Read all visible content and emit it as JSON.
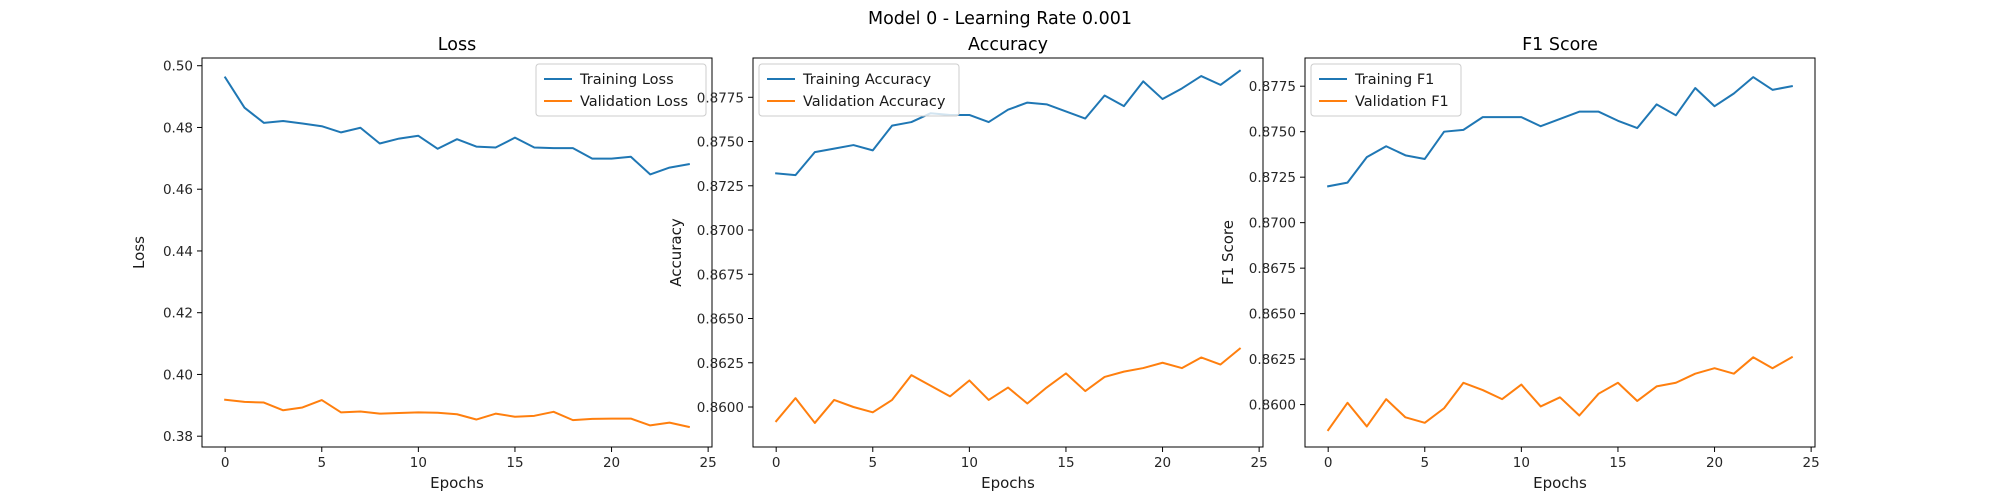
{
  "figure": {
    "title": "Model 0 - Learning Rate 0.001"
  },
  "chart_data": [
    {
      "type": "line",
      "title": "Loss",
      "xlabel": "Epochs",
      "ylabel": "Loss",
      "xlim": [
        -1.2,
        25.2
      ],
      "ylim": [
        0.3765,
        0.5025
      ],
      "xticks": [
        0,
        5,
        10,
        15,
        20,
        25
      ],
      "yticks": [
        0.38,
        0.4,
        0.42,
        0.44,
        0.46,
        0.48,
        0.5
      ],
      "ytick_labels": [
        "0.38",
        "0.40",
        "0.42",
        "0.44",
        "0.46",
        "0.48",
        "0.50"
      ],
      "legend_position": "top-right",
      "x": [
        0,
        1,
        2,
        3,
        4,
        5,
        6,
        7,
        8,
        9,
        10,
        11,
        12,
        13,
        14,
        15,
        16,
        17,
        18,
        19,
        20,
        21,
        22,
        23,
        24
      ],
      "series": [
        {
          "name": "Training Loss",
          "color": "#1f77b4",
          "values": [
            0.4962,
            0.4864,
            0.4815,
            0.4821,
            0.4813,
            0.4804,
            0.4784,
            0.4799,
            0.4748,
            0.4764,
            0.4773,
            0.4731,
            0.4762,
            0.4738,
            0.4735,
            0.4767,
            0.4735,
            0.4733,
            0.4733,
            0.4699,
            0.4699,
            0.4705,
            0.4648,
            0.467,
            0.4681
          ]
        },
        {
          "name": "Validation Loss",
          "color": "#ff7f0e",
          "values": [
            0.3918,
            0.3911,
            0.3909,
            0.3884,
            0.3893,
            0.3917,
            0.3877,
            0.388,
            0.3873,
            0.3875,
            0.3877,
            0.3876,
            0.3871,
            0.3854,
            0.3873,
            0.3863,
            0.3866,
            0.3879,
            0.3852,
            0.3856,
            0.3857,
            0.3857,
            0.3835,
            0.3844,
            0.383
          ]
        }
      ]
    },
    {
      "type": "line",
      "title": "Accuracy",
      "xlabel": "Epochs",
      "ylabel": "Accuracy",
      "xlim": [
        -1.2,
        25.2
      ],
      "ylim": [
        0.85774,
        0.87972
      ],
      "xticks": [
        0,
        5,
        10,
        15,
        20,
        25
      ],
      "yticks": [
        0.86,
        0.8625,
        0.865,
        0.8675,
        0.87,
        0.8725,
        0.875,
        0.8775
      ],
      "ytick_labels": [
        "0.8600",
        "0.8625",
        "0.8650",
        "0.8675",
        "0.8700",
        "0.8725",
        "0.8750",
        "0.8775"
      ],
      "legend_position": "top-left",
      "x": [
        0,
        1,
        2,
        3,
        4,
        5,
        6,
        7,
        8,
        9,
        10,
        11,
        12,
        13,
        14,
        15,
        16,
        17,
        18,
        19,
        20,
        21,
        22,
        23,
        24
      ],
      "series": [
        {
          "name": "Training Accuracy",
          "color": "#1f77b4",
          "values": [
            0.8732,
            0.8731,
            0.8744,
            0.8746,
            0.8748,
            0.8745,
            0.8759,
            0.8761,
            0.8766,
            0.8765,
            0.8765,
            0.8761,
            0.8768,
            0.8772,
            0.8771,
            0.8767,
            0.8763,
            0.8776,
            0.877,
            0.8784,
            0.8774,
            0.878,
            0.8787,
            0.8782,
            0.879
          ]
        },
        {
          "name": "Validation Accuracy",
          "color": "#ff7f0e",
          "values": [
            0.8592,
            0.8605,
            0.8591,
            0.8604,
            0.86,
            0.8597,
            0.8604,
            0.8618,
            0.8612,
            0.8606,
            0.8615,
            0.8604,
            0.8611,
            0.8602,
            0.8611,
            0.8619,
            0.8609,
            0.8617,
            0.862,
            0.8622,
            0.8625,
            0.8622,
            0.8628,
            0.8624,
            0.8633
          ]
        }
      ]
    },
    {
      "type": "line",
      "title": "F1 Score",
      "xlabel": "Epochs",
      "ylabel": "F1 Score",
      "xlim": [
        -1.2,
        25.2
      ],
      "ylim": [
        0.85767,
        0.87905
      ],
      "xticks": [
        0,
        5,
        10,
        15,
        20,
        25
      ],
      "yticks": [
        0.86,
        0.8625,
        0.865,
        0.8675,
        0.87,
        0.8725,
        0.875,
        0.8775
      ],
      "ytick_labels": [
        "0.8600",
        "0.8625",
        "0.8650",
        "0.8675",
        "0.8700",
        "0.8725",
        "0.8750",
        "0.8775"
      ],
      "legend_position": "top-left",
      "x": [
        0,
        1,
        2,
        3,
        4,
        5,
        6,
        7,
        8,
        9,
        10,
        11,
        12,
        13,
        14,
        15,
        16,
        17,
        18,
        19,
        20,
        21,
        22,
        23,
        24
      ],
      "series": [
        {
          "name": "Training F1",
          "color": "#1f77b4",
          "values": [
            0.872,
            0.8722,
            0.8736,
            0.8742,
            0.8737,
            0.8735,
            0.875,
            0.8751,
            0.8758,
            0.8758,
            0.8758,
            0.8753,
            0.8757,
            0.8761,
            0.8761,
            0.8756,
            0.8752,
            0.8765,
            0.8759,
            0.8774,
            0.8764,
            0.8771,
            0.878,
            0.8773,
            0.8775
          ]
        },
        {
          "name": "Validation F1",
          "color": "#ff7f0e",
          "values": [
            0.8586,
            0.8601,
            0.8588,
            0.8603,
            0.8593,
            0.859,
            0.8598,
            0.8612,
            0.8608,
            0.8603,
            0.8611,
            0.8599,
            0.8604,
            0.8594,
            0.8606,
            0.8612,
            0.8602,
            0.861,
            0.8612,
            0.8617,
            0.862,
            0.8617,
            0.8626,
            0.862,
            0.8626
          ]
        }
      ]
    }
  ]
}
